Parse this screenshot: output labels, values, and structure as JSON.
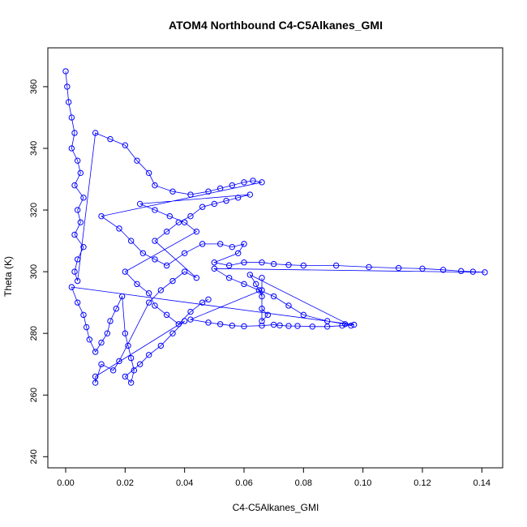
{
  "chart_data": {
    "type": "scatter",
    "title": "ATOM4 Northbound C4-C5Alkanes_GMI",
    "xlabel": "C4-C5Alkanes_GMI",
    "ylabel": "Theta (K)",
    "xlim": [
      -0.006,
      0.147
    ],
    "ylim": [
      236.4,
      372.6
    ],
    "x_ticks": [
      0.0,
      0.02,
      0.04,
      0.06,
      0.08,
      0.1,
      0.12,
      0.14
    ],
    "x_tick_labels": [
      "0.00",
      "0.02",
      "0.04",
      "0.06",
      "0.08",
      "0.10",
      "0.12",
      "0.14"
    ],
    "y_ticks": [
      240,
      260,
      280,
      300,
      320,
      340,
      360
    ],
    "y_tick_labels": [
      "240",
      "260",
      "280",
      "300",
      "320",
      "340",
      "360"
    ],
    "grid": false,
    "marker": "open-circle",
    "color": "#0000ff",
    "series": [
      {
        "values": [
          [
            0.0,
            365
          ],
          [
            0.0005,
            360
          ],
          [
            0.001,
            355
          ],
          [
            0.002,
            350
          ],
          [
            0.003,
            345
          ],
          [
            0.002,
            340
          ],
          [
            0.004,
            336
          ],
          [
            0.005,
            332
          ],
          [
            0.003,
            328
          ],
          [
            0.006,
            324
          ],
          [
            0.004,
            320
          ],
          [
            0.005,
            316
          ],
          [
            0.003,
            312
          ],
          [
            0.006,
            308
          ],
          [
            0.004,
            304
          ],
          [
            0.003,
            300
          ],
          [
            0.004,
            297
          ],
          [
            0.01,
            345
          ],
          [
            0.015,
            343
          ],
          [
            0.02,
            341
          ],
          [
            0.024,
            336
          ],
          [
            0.028,
            332
          ],
          [
            0.03,
            328
          ],
          [
            0.036,
            326
          ],
          [
            0.042,
            325
          ],
          [
            0.048,
            326
          ],
          [
            0.052,
            327
          ],
          [
            0.056,
            328
          ],
          [
            0.06,
            329
          ],
          [
            0.063,
            329.5
          ],
          [
            0.066,
            329
          ],
          [
            0.012,
            318
          ],
          [
            0.018,
            314
          ],
          [
            0.022,
            310
          ],
          [
            0.026,
            306
          ],
          [
            0.03,
            304
          ],
          [
            0.034,
            302
          ],
          [
            0.04,
            306
          ],
          [
            0.046,
            309
          ],
          [
            0.052,
            309
          ],
          [
            0.056,
            308
          ],
          [
            0.06,
            309
          ],
          [
            0.058,
            306
          ],
          [
            0.05,
            303
          ],
          [
            0.055,
            302
          ],
          [
            0.06,
            303
          ],
          [
            0.066,
            303
          ],
          [
            0.07,
            302.5
          ],
          [
            0.075,
            302.2
          ],
          [
            0.08,
            302
          ],
          [
            0.091,
            302
          ],
          [
            0.102,
            301.5
          ],
          [
            0.112,
            301.2
          ],
          [
            0.12,
            301
          ],
          [
            0.127,
            300.6
          ],
          [
            0.133,
            300.2
          ],
          [
            0.137,
            300
          ],
          [
            0.141,
            299.8
          ],
          [
            0.05,
            301
          ],
          [
            0.055,
            298
          ],
          [
            0.06,
            296
          ],
          [
            0.065,
            294
          ],
          [
            0.07,
            292
          ],
          [
            0.075,
            289
          ],
          [
            0.08,
            286
          ],
          [
            0.088,
            284
          ],
          [
            0.094,
            283
          ],
          [
            0.096,
            282.5
          ],
          [
            0.062,
            299
          ],
          [
            0.064,
            296
          ],
          [
            0.066,
            292
          ],
          [
            0.066,
            288
          ],
          [
            0.068,
            286
          ],
          [
            0.066,
            284
          ],
          [
            0.066,
            298
          ],
          [
            0.066,
            294
          ],
          [
            0.042,
            284.5
          ],
          [
            0.048,
            283.5
          ],
          [
            0.052,
            283
          ],
          [
            0.056,
            282.5
          ],
          [
            0.06,
            282.3
          ],
          [
            0.066,
            282.5
          ],
          [
            0.07,
            282.8
          ],
          [
            0.072,
            282.6
          ],
          [
            0.075,
            282.4
          ],
          [
            0.078,
            282.4
          ],
          [
            0.083,
            282.2
          ],
          [
            0.088,
            282.2
          ],
          [
            0.093,
            282.5
          ],
          [
            0.097,
            282.8
          ],
          [
            0.002,
            295
          ],
          [
            0.004,
            290
          ],
          [
            0.006,
            286
          ],
          [
            0.007,
            282
          ],
          [
            0.008,
            278
          ],
          [
            0.01,
            274
          ],
          [
            0.012,
            277
          ],
          [
            0.014,
            280
          ],
          [
            0.015,
            284
          ],
          [
            0.017,
            288
          ],
          [
            0.019,
            292
          ],
          [
            0.02,
            280
          ],
          [
            0.021,
            276
          ],
          [
            0.022,
            272
          ],
          [
            0.023,
            268
          ],
          [
            0.022,
            264
          ],
          [
            0.02,
            266
          ],
          [
            0.025,
            270
          ],
          [
            0.028,
            273
          ],
          [
            0.032,
            276
          ],
          [
            0.036,
            280
          ],
          [
            0.04,
            284
          ],
          [
            0.01,
            266
          ],
          [
            0.01,
            264
          ],
          [
            0.012,
            270
          ],
          [
            0.016,
            268
          ],
          [
            0.018,
            271
          ],
          [
            0.028,
            290
          ],
          [
            0.032,
            294
          ],
          [
            0.036,
            297
          ],
          [
            0.04,
            300
          ],
          [
            0.044,
            298
          ],
          [
            0.03,
            310
          ],
          [
            0.034,
            313
          ],
          [
            0.038,
            316
          ],
          [
            0.042,
            318
          ],
          [
            0.046,
            321
          ],
          [
            0.05,
            322
          ],
          [
            0.054,
            323
          ],
          [
            0.058,
            324
          ],
          [
            0.062,
            325
          ],
          [
            0.025,
            322
          ],
          [
            0.03,
            320
          ],
          [
            0.035,
            318
          ],
          [
            0.04,
            316
          ],
          [
            0.044,
            313
          ],
          [
            0.02,
            300
          ],
          [
            0.024,
            296
          ],
          [
            0.028,
            293
          ],
          [
            0.03,
            289
          ],
          [
            0.034,
            286
          ],
          [
            0.038,
            283
          ],
          [
            0.042,
            287
          ],
          [
            0.046,
            290
          ],
          [
            0.048,
            291
          ]
        ]
      }
    ],
    "annotations": []
  }
}
